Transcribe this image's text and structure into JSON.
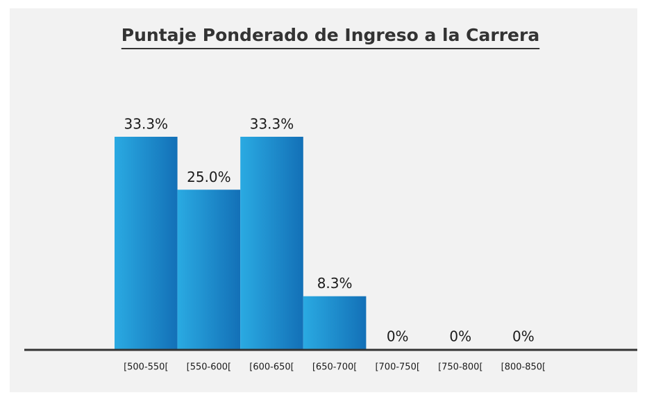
{
  "chart_data": {
    "type": "bar",
    "title": "Puntaje Ponderado de Ingreso a la Carrera",
    "categories": [
      "[500-550[",
      "[550-600[",
      "[600-650[",
      "[650-700[",
      "[700-750[",
      "[750-800[",
      "[800-850["
    ],
    "values": [
      33.3,
      25.0,
      33.3,
      8.3,
      0,
      0,
      0
    ],
    "value_labels": [
      "33.3%",
      "25.0%",
      "33.3%",
      "8.3%",
      "0%",
      "0%",
      "0%"
    ],
    "gradient": [
      "#2aaae2",
      "#1370b7"
    ]
  }
}
